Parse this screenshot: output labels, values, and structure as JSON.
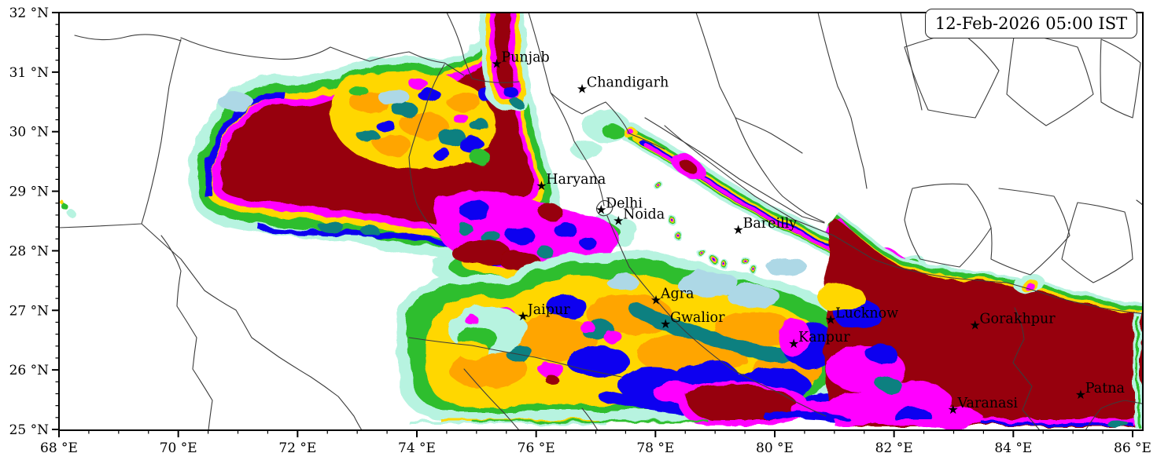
{
  "timestamp_box": {
    "label": "12-Feb-2026 05:00 IST"
  },
  "axes": {
    "x": {
      "unit_suffix": " °E",
      "range": [
        68,
        86.17
      ],
      "ticks": [
        {
          "value": 68,
          "label": "68 °E"
        },
        {
          "value": 70,
          "label": "70 °E"
        },
        {
          "value": 72,
          "label": "72 °E"
        },
        {
          "value": 74,
          "label": "74 °E"
        },
        {
          "value": 76,
          "label": "76 °E"
        },
        {
          "value": 78,
          "label": "78 °E"
        },
        {
          "value": 80,
          "label": "80 °E"
        },
        {
          "value": 82,
          "label": "82 °E"
        },
        {
          "value": 84,
          "label": "84 °E"
        },
        {
          "value": 86,
          "label": "86 °E"
        }
      ],
      "minor_step": 0.5
    },
    "y": {
      "unit_suffix": " °N",
      "range": [
        25,
        32
      ],
      "ticks": [
        {
          "value": 32,
          "label": "32 °N"
        },
        {
          "value": 31,
          "label": "31 °N"
        },
        {
          "value": 30,
          "label": "30 °N"
        },
        {
          "value": 29,
          "label": "29 °N"
        },
        {
          "value": 28,
          "label": "28 °N"
        },
        {
          "value": 27,
          "label": "27 °N"
        },
        {
          "value": 26,
          "label": "26 °N"
        },
        {
          "value": 25,
          "label": "25 °N"
        }
      ],
      "minor_step": 0.2
    }
  },
  "cities": [
    {
      "name": "Punjab",
      "lon": 75.35,
      "lat": 31.15
    },
    {
      "name": "Chandigarh",
      "lon": 76.78,
      "lat": 30.73
    },
    {
      "name": "Haryana",
      "lon": 76.1,
      "lat": 29.1
    },
    {
      "name": "Delhi",
      "lon": 77.1,
      "lat": 28.7
    },
    {
      "name": "Noida",
      "lon": 77.39,
      "lat": 28.51
    },
    {
      "name": "Bareilly",
      "lon": 79.4,
      "lat": 28.36
    },
    {
      "name": "Jaipur",
      "lon": 75.79,
      "lat": 26.91
    },
    {
      "name": "Agra",
      "lon": 78.02,
      "lat": 27.18
    },
    {
      "name": "Gwalior",
      "lon": 78.18,
      "lat": 26.78
    },
    {
      "name": "Lucknow",
      "lon": 80.95,
      "lat": 26.85
    },
    {
      "name": "Kanpur",
      "lon": 80.33,
      "lat": 26.45
    },
    {
      "name": "Gorakhpur",
      "lon": 83.37,
      "lat": 26.76
    },
    {
      "name": "Varanasi",
      "lon": 83.0,
      "lat": 25.34
    },
    {
      "name": "Patna",
      "lon": 85.14,
      "lat": 25.59
    }
  ],
  "map_palette": {
    "pale": "#B7F3E0",
    "lightblue": "#ADD8E6",
    "aqua": "#7FFFD4",
    "green": "#2EBE2E",
    "gold": "#FFD700",
    "orange": "#FFA500",
    "teal": "#0E8080",
    "blue": "#0A00F0",
    "magenta": "#FF00FF",
    "darkred": "#970007"
  },
  "frame_color": "#000000",
  "boundary_color": "#3c3c3c"
}
